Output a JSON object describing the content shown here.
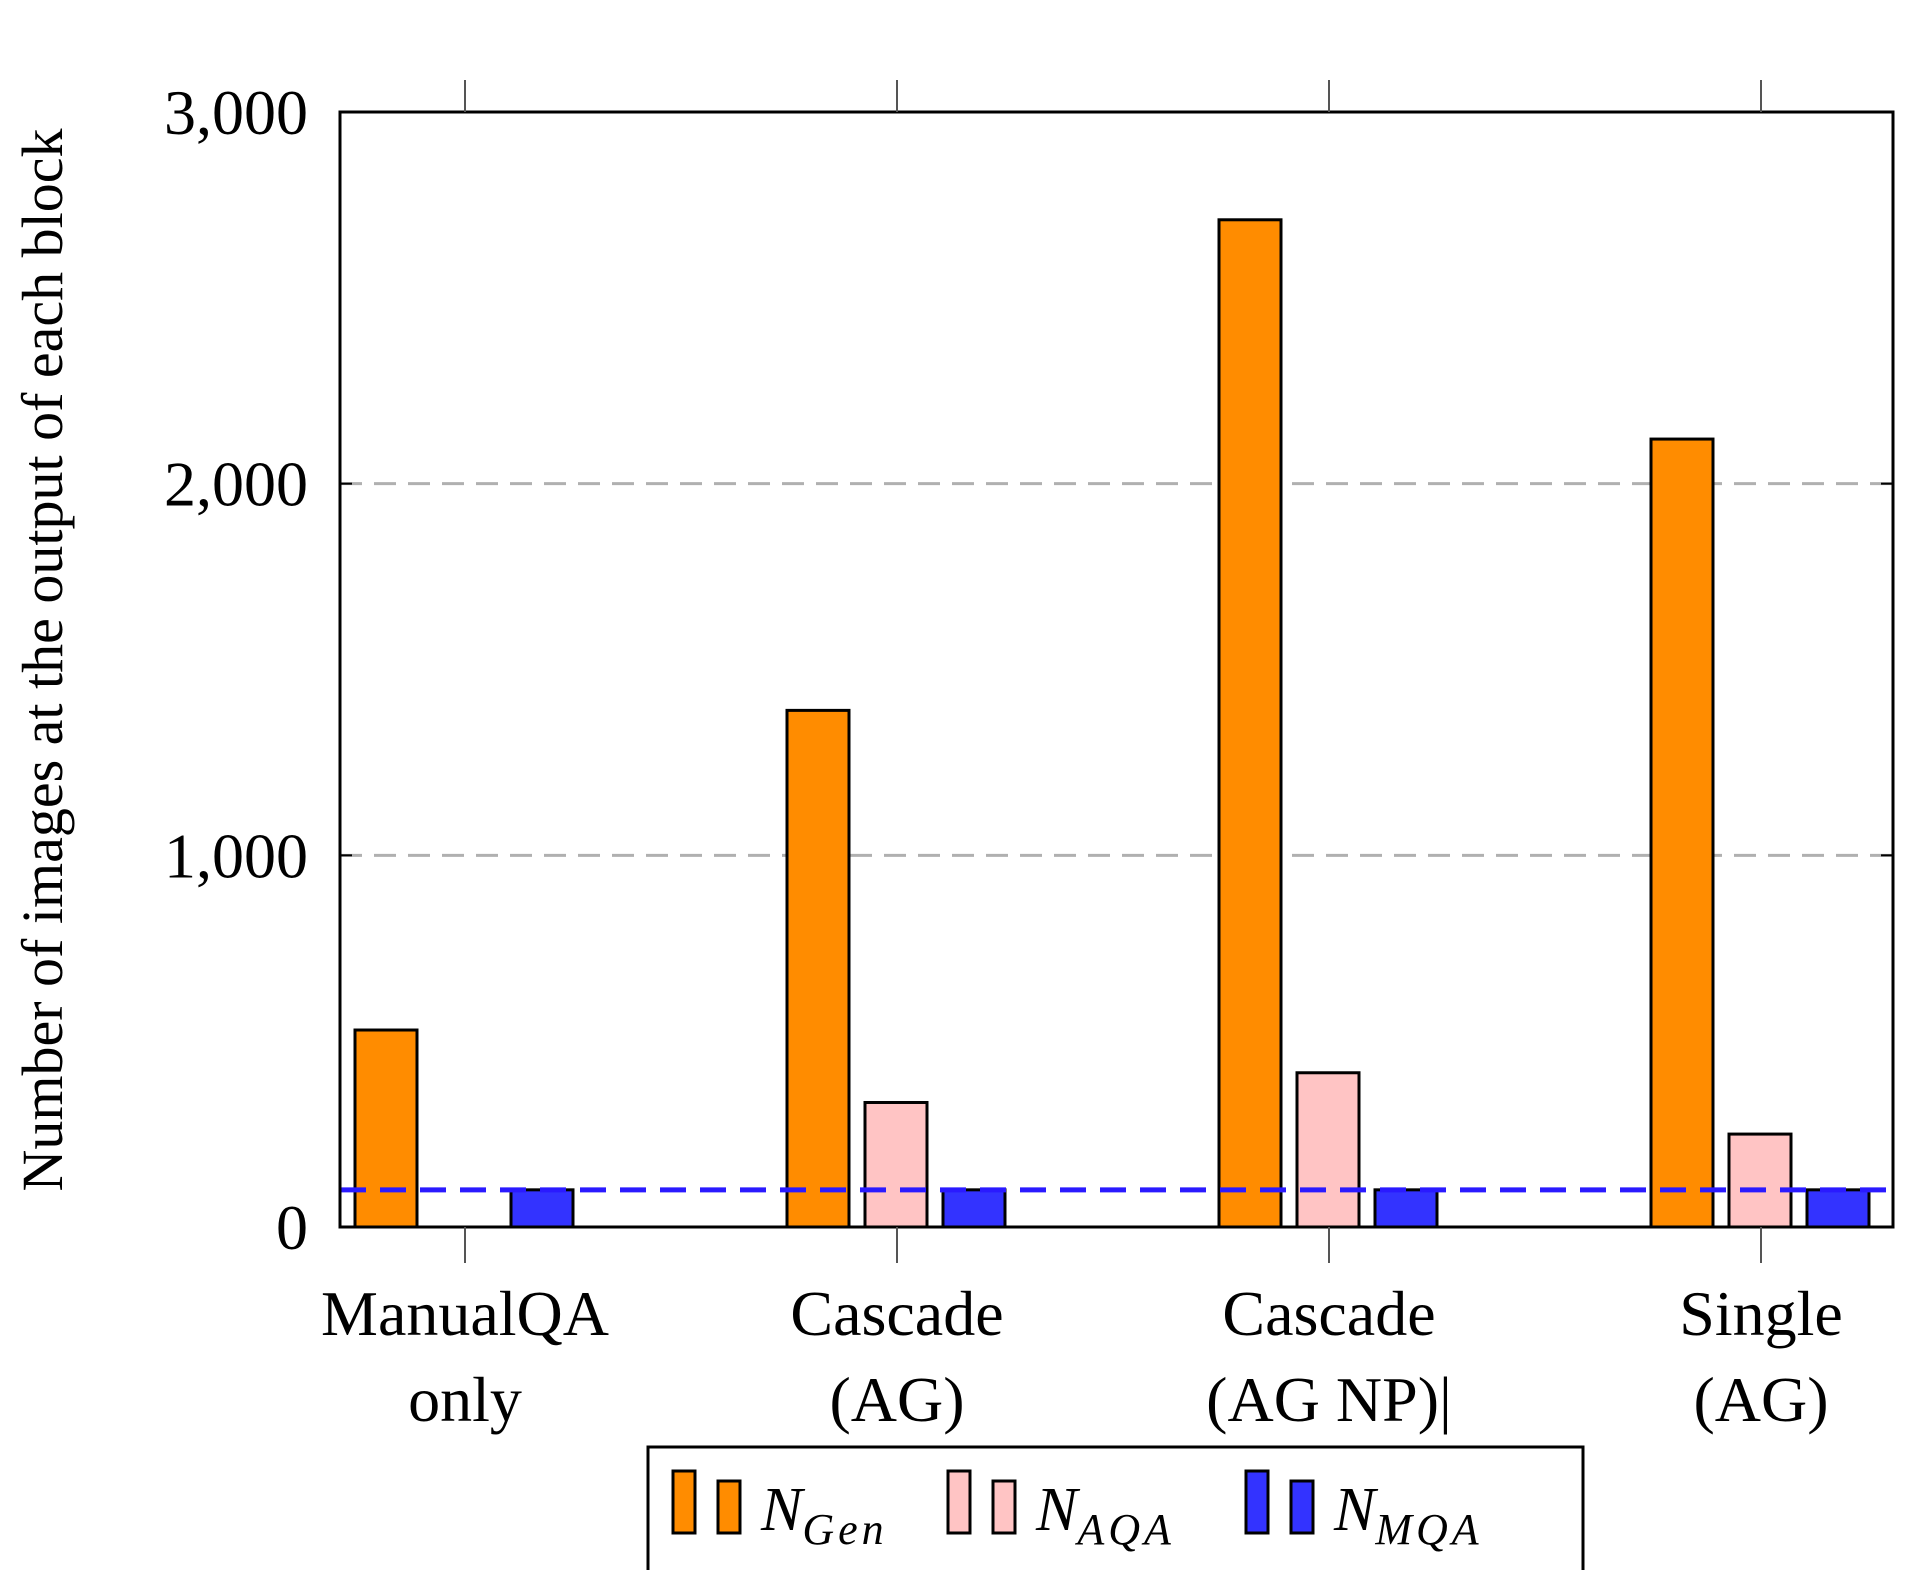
{
  "chart_data": {
    "type": "bar",
    "title": "",
    "xlabel": "",
    "ylabel": "Number of images at the output of each block",
    "ylim": [
      0,
      3000
    ],
    "yticks": [
      0,
      1000,
      2000,
      3000
    ],
    "ytick_labels": [
      "0",
      "1,000",
      "2,000",
      "3,000"
    ],
    "grid": "horizontal dashed",
    "categories": [
      [
        "ManualQA",
        "only"
      ],
      [
        "Cascade",
        "(AG)"
      ],
      [
        "Cascade",
        "(AG NP)|"
      ],
      [
        "Single",
        "(AG)"
      ]
    ],
    "series": [
      {
        "name": "N_Gen",
        "base": "N",
        "sub": "Gen",
        "color": "#ff8c00",
        "values": [
          530,
          1390,
          2710,
          2120
        ]
      },
      {
        "name": "N_AQA",
        "base": "N",
        "sub": "AQA",
        "color": "#ffc4c4",
        "values": [
          0,
          335,
          415,
          250
        ]
      },
      {
        "name": "N_MQA",
        "base": "N",
        "sub": "MQA",
        "color": "#3333ff",
        "values": [
          100,
          100,
          100,
          100
        ]
      }
    ],
    "reference_line": {
      "value": 100,
      "color": "#2a1aff",
      "style": "dashed"
    },
    "legend_position": "bottom-center"
  }
}
